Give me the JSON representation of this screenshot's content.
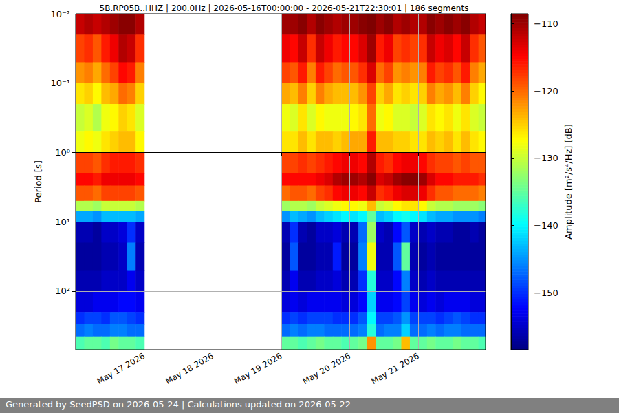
{
  "chart_data": {
    "type": "heatmap",
    "title": "5B.RP05B..HHZ | 200.0Hz | 2026-05-16T00:00:00 - 2026-05-21T22:30:01 | 186 segments",
    "annotation": "Generated by SeedPSD on 2026-05-24 | Calculations updated on 2026-05-22",
    "y_label": "Period [s]",
    "log": "y",
    "grid": true,
    "xlim": [
      "2026-05-16T00:00:00",
      "2026-05-21T23:30:00"
    ],
    "xticks": [
      {
        "value": "2026-05-17T00:00:00",
        "label": "May 17 2026"
      },
      {
        "value": "2026-05-18T00:00:00",
        "label": "May 18 2026"
      },
      {
        "value": "2026-05-19T00:00:00",
        "label": "May 19 2026"
      },
      {
        "value": "2026-05-20T00:00:00",
        "label": "May 20 2026"
      },
      {
        "value": "2026-05-21T00:00:00",
        "label": "May 21 2026"
      }
    ],
    "ylim": [
      0.01,
      700
    ],
    "yticks": [
      {
        "value": 0.01,
        "label": "10⁻²"
      },
      {
        "value": 0.1,
        "label": "10⁻¹"
      },
      {
        "value": 1,
        "label": "10⁰"
      },
      {
        "value": 10,
        "label": "10¹"
      },
      {
        "value": 100,
        "label": "10²"
      }
    ],
    "x_bins": [
      "2026-05-16T00:00:00",
      "2026-05-16T03:00:00",
      "2026-05-16T06:00:00",
      "2026-05-16T09:00:00",
      "2026-05-16T12:00:00",
      "2026-05-16T15:00:00",
      "2026-05-16T18:00:00",
      "2026-05-16T21:00:00",
      "2026-05-17T00:00:00",
      "2026-05-19T00:00:00",
      "2026-05-19T03:00:00",
      "2026-05-19T06:00:00",
      "2026-05-19T09:00:00",
      "2026-05-19T12:00:00",
      "2026-05-19T15:00:00",
      "2026-05-19T18:00:00",
      "2026-05-19T21:00:00",
      "2026-05-20T00:00:00",
      "2026-05-20T03:00:00",
      "2026-05-20T06:00:00",
      "2026-05-20T09:00:00",
      "2026-05-20T12:00:00",
      "2026-05-20T15:00:00",
      "2026-05-20T18:00:00",
      "2026-05-20T21:00:00",
      "2026-05-21T00:00:00",
      "2026-05-21T03:00:00",
      "2026-05-21T06:00:00",
      "2026-05-21T09:00:00",
      "2026-05-21T12:00:00",
      "2026-05-21T15:00:00",
      "2026-05-21T18:00:00",
      "2026-05-21T21:00:00",
      "2026-05-21T23:30:00"
    ],
    "period_bins": [
      0.01,
      0.02,
      0.05,
      0.1,
      0.2,
      0.5,
      1,
      2,
      3,
      5,
      7,
      10,
      20,
      50,
      100,
      200,
      300,
      450,
      700
    ],
    "cells": [
      [
        -112,
        -111,
        -112,
        -111,
        -110,
        -109,
        -109,
        -111,
        null,
        -110,
        -110,
        -109,
        -111,
        -109,
        -110,
        -111,
        -110,
        -110,
        -109,
        -108.5,
        -110,
        -109,
        -111,
        -110,
        -111,
        -111,
        -109,
        -110,
        -109,
        -110,
        -109,
        -111,
        -112
      ],
      [
        -118,
        -117,
        -119,
        -116,
        -114,
        -111,
        -112,
        -117,
        null,
        -114,
        -115,
        -112,
        -117,
        -112,
        -114,
        -116,
        -115,
        -115,
        -113,
        -110,
        -116,
        -114,
        -118,
        -117,
        -118,
        -117,
        -112,
        -114,
        -113,
        -115,
        -112,
        -117,
        -119
      ],
      [
        -122,
        -121,
        -123,
        -120,
        -118,
        -115,
        -116,
        -121,
        null,
        -118,
        -119,
        -116,
        -121,
        -116,
        -118,
        -120,
        -119,
        -119,
        -117,
        -113,
        -120,
        -118,
        -122,
        -121,
        -122,
        -121,
        -116,
        -118,
        -117,
        -119,
        -116,
        -121,
        -123
      ],
      [
        -126,
        -125,
        -127,
        -124,
        -123,
        -120,
        -121,
        -125,
        null,
        -123,
        -124,
        -121,
        -125,
        -121,
        -123,
        -124,
        -124,
        -124,
        -122,
        -118,
        -125,
        -123,
        -126,
        -125,
        -126,
        -125,
        -121,
        -123,
        -122,
        -124,
        -121,
        -125,
        -127
      ],
      [
        -130,
        -129,
        -131,
        -128,
        -127,
        -125,
        -126,
        -129,
        null,
        -128,
        -129,
        -126,
        -129,
        -127,
        -128,
        -128,
        -128,
        -127,
        -126,
        -120,
        -128,
        -127,
        -129,
        -129,
        -130,
        -129,
        -126,
        -127,
        -126,
        -128,
        -126,
        -129,
        -130
      ],
      [
        -128,
        -127,
        -128,
        -126,
        -125,
        -124,
        -124,
        -127,
        null,
        -126,
        -126,
        -124,
        -126,
        -124,
        -124,
        -125,
        -124,
        -123,
        -123,
        -116,
        -124,
        -124,
        -125,
        -125,
        -126,
        -126,
        -124,
        -125,
        -124,
        -126,
        -124,
        -126,
        -127
      ],
      [
        -118,
        -118,
        -119,
        -117,
        -116,
        -116,
        -116,
        -117,
        null,
        -118,
        -118,
        -117,
        -118,
        -117,
        -116,
        -115,
        -114,
        -114,
        -115,
        -111,
        -116,
        -117,
        -115,
        -114,
        -114,
        -115,
        -117,
        -118,
        -118,
        -119,
        -118,
        -119,
        -119
      ],
      [
        -115,
        -115,
        -116,
        -114,
        -114,
        -114,
        -114,
        -115,
        null,
        -115,
        -115,
        -115,
        -115,
        -114,
        -113,
        -111,
        -110,
        -110,
        -111,
        -109,
        -113,
        -112,
        -110,
        -109,
        -109,
        -110,
        -113,
        -115,
        -115,
        -116,
        -116,
        -116,
        -117
      ],
      [
        -119,
        -119,
        -120,
        -118,
        -118,
        -118,
        -118,
        -119,
        null,
        -120,
        -119,
        -119,
        -120,
        -118,
        -117,
        -115,
        -114,
        -114,
        -115,
        -112,
        -117,
        -116,
        -114,
        -113,
        -113,
        -114,
        -117,
        -119,
        -119,
        -120,
        -120,
        -120,
        -121
      ],
      [
        -131,
        -131,
        -132,
        -130,
        -130,
        -130,
        -130,
        -131,
        null,
        -132,
        -131,
        -131,
        -132,
        -130,
        -129,
        -128,
        -127,
        -127,
        -128,
        -124,
        -130,
        -129,
        -127,
        -126,
        -126,
        -127,
        -130,
        -131,
        -131,
        -132,
        -132,
        -132,
        -133
      ],
      [
        -144,
        -144,
        -145,
        -143,
        -143,
        -143,
        -143,
        -144,
        null,
        -145,
        -143,
        -144,
        -145,
        -143,
        -142,
        -141,
        -140,
        -141,
        -140,
        -135,
        -143,
        -142,
        -140,
        -139,
        -140,
        -141,
        -143,
        -144,
        -144,
        -145,
        -145,
        -145,
        -146
      ],
      [
        -156,
        -156,
        -157,
        -155,
        -155,
        -154,
        -150,
        -155,
        null,
        -156,
        -150,
        -156,
        -157,
        -155,
        -155,
        -154,
        -156,
        -156,
        -147,
        -132,
        -155,
        -156,
        -152,
        -148,
        -155,
        -156,
        -155,
        -156,
        -156,
        -157,
        -157,
        -156,
        -157
      ],
      [
        -157,
        -157,
        -157,
        -156,
        -156,
        -155,
        -146,
        -156,
        null,
        -157,
        -148,
        -157,
        -157,
        -156,
        -156,
        -151,
        -157,
        -157,
        -146,
        -128,
        -156,
        -156,
        -148,
        -135,
        -156,
        -157,
        -156,
        -157,
        -157,
        -157,
        -157,
        -157,
        -157
      ],
      [
        -156,
        -156,
        -156,
        -155,
        -155,
        -155,
        -153,
        -155,
        null,
        -156,
        -153,
        -156,
        -156,
        -155,
        -155,
        -154,
        -156,
        -156,
        -150,
        -138,
        -155,
        -155,
        -152,
        -146,
        -155,
        -156,
        -155,
        -156,
        -156,
        -156,
        -156,
        -156,
        -156
      ],
      [
        -154,
        -154,
        -153,
        -153,
        -153,
        -152,
        -152,
        -153,
        null,
        -154,
        -153,
        -154,
        -153,
        -153,
        -153,
        -153,
        -154,
        -154,
        -152,
        -142,
        -153,
        -153,
        -152,
        -149,
        -153,
        -154,
        -153,
        -154,
        -153,
        -153,
        -153,
        -154,
        -154
      ],
      [
        -150,
        -149,
        -149,
        -150,
        -148,
        -148,
        -149,
        -150,
        null,
        -150,
        -149,
        -150,
        -149,
        -149,
        -149,
        -150,
        -150,
        -150,
        -148,
        -140,
        -149,
        -149,
        -148,
        -145,
        -149,
        -149,
        -149,
        -150,
        -149,
        -148,
        -149,
        -150,
        -150
      ],
      [
        -147,
        -146,
        -147,
        -147,
        -146,
        -146,
        -147,
        -147,
        null,
        -147,
        -146,
        -147,
        -146,
        -146,
        -147,
        -147,
        -147,
        -147,
        -146,
        -138,
        -147,
        -146,
        -146,
        -142,
        -147,
        -147,
        -146,
        -147,
        -146,
        -146,
        -147,
        -147,
        -147
      ],
      [
        -136,
        -135,
        -135,
        -136,
        -134,
        -135,
        -135,
        -136,
        null,
        -135,
        -135,
        -136,
        -135,
        -134,
        -135,
        -135,
        -136,
        -135,
        -134,
        -122,
        -135,
        -135,
        -134,
        -124,
        -135,
        -135,
        -134,
        -135,
        -135,
        -134,
        -135,
        -135,
        -136
      ]
    ],
    "colorbar": {
      "label": "Amplitude [m²/s⁴/Hz] [dB]",
      "range": [
        -158.5,
        -108.5
      ],
      "ticks": [
        {
          "value": -150,
          "label": "−150"
        },
        {
          "value": -140,
          "label": "−140"
        },
        {
          "value": -130,
          "label": "−130"
        },
        {
          "value": -120,
          "label": "−120"
        },
        {
          "value": -110,
          "label": "−110"
        }
      ]
    }
  }
}
